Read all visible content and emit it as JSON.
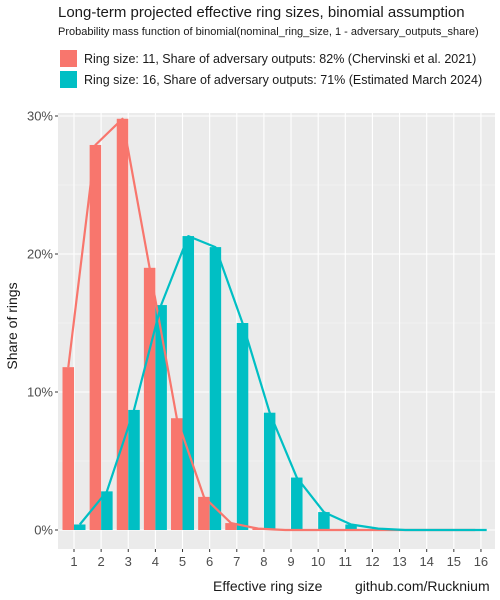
{
  "chart_data": {
    "type": "bar",
    "title": "Long-term projected effective ring sizes, binomial assumption",
    "subtitle": "Probability mass function of binomial(nominal_ring_size, 1 - adversary_outputs_share)",
    "xlabel": "Effective ring size",
    "ylabel": "Share of rings",
    "caption": "github.com/Rucknium",
    "categories": [
      1,
      2,
      3,
      4,
      5,
      6,
      7,
      8,
      9,
      10,
      11,
      12,
      13,
      14,
      15,
      16
    ],
    "ylim": [
      0,
      0.31
    ],
    "y_ticks": [
      0,
      0.1,
      0.2,
      0.3
    ],
    "y_tick_labels": [
      "0%",
      "10%",
      "20%",
      "30%"
    ],
    "grid": true,
    "legend_position": "top",
    "series": [
      {
        "name": "Ring size: 11, Share of adversary outputs: 82% (Chervinski et al. 2021)",
        "color": "#F8766D",
        "values": [
          0.118,
          0.279,
          0.298,
          0.19,
          0.081,
          0.024,
          0.005,
          0.001,
          0.0,
          0.0,
          0.0,
          0.0,
          0.0,
          0.0,
          0.0,
          0.0
        ]
      },
      {
        "name": "Ring size: 16, Share of adversary outputs: 71% (Estimated March 2024)",
        "color": "#00BFC4",
        "values": [
          0.004,
          0.028,
          0.087,
          0.163,
          0.213,
          0.205,
          0.15,
          0.085,
          0.038,
          0.013,
          0.004,
          0.001,
          0.0,
          0.0,
          0.0,
          0.0
        ]
      }
    ]
  }
}
